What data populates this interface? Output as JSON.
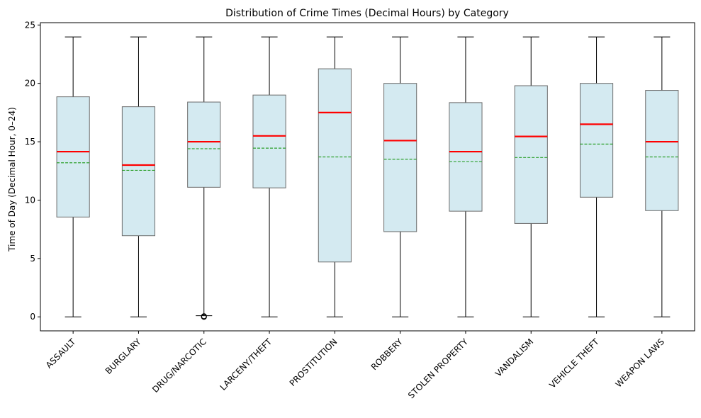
{
  "chart_data": {
    "type": "box",
    "title": "Distribution of Crime Times (Decimal Hours) by Category",
    "xlabel": "",
    "ylabel": "Time of Day (Decimal Hour, 0–24)",
    "ylim": [
      -1.2,
      25.2
    ],
    "yticks": [
      "0",
      "5",
      "10",
      "15",
      "20",
      "25"
    ],
    "grid": false,
    "categories": [
      "ASSAULT",
      "BURGLARY",
      "DRUG/NARCOTIC",
      "LARCENY/THEFT",
      "PROSTITUTION",
      "ROBBERY",
      "STOLEN PROPERTY",
      "VANDALISM",
      "VEHICLE THEFT",
      "WEAPON LAWS"
    ],
    "boxes": [
      {
        "whisker_low": 0,
        "q1": 8.55,
        "median": 14.15,
        "mean": 13.2,
        "q3": 18.85,
        "whisker_high": 23.98,
        "outliers": []
      },
      {
        "whisker_low": 0,
        "q1": 6.95,
        "median": 13.0,
        "mean": 12.55,
        "q3": 18.0,
        "whisker_high": 23.98,
        "outliers": []
      },
      {
        "whisker_low": 0.1,
        "q1": 11.1,
        "median": 15.0,
        "mean": 14.4,
        "q3": 18.4,
        "whisker_high": 23.98,
        "outliers": [
          0.0,
          0.05
        ]
      },
      {
        "whisker_low": 0,
        "q1": 11.05,
        "median": 15.5,
        "mean": 14.45,
        "q3": 19.0,
        "whisker_high": 23.98,
        "outliers": []
      },
      {
        "whisker_low": 0,
        "q1": 4.7,
        "median": 17.5,
        "mean": 13.7,
        "q3": 21.25,
        "whisker_high": 23.98,
        "outliers": []
      },
      {
        "whisker_low": 0,
        "q1": 7.3,
        "median": 15.1,
        "mean": 13.5,
        "q3": 20.0,
        "whisker_high": 23.98,
        "outliers": []
      },
      {
        "whisker_low": 0,
        "q1": 9.05,
        "median": 14.15,
        "mean": 13.3,
        "q3": 18.35,
        "whisker_high": 23.98,
        "outliers": []
      },
      {
        "whisker_low": 0,
        "q1": 8.0,
        "median": 15.45,
        "mean": 13.65,
        "q3": 19.8,
        "whisker_high": 23.98,
        "outliers": []
      },
      {
        "whisker_low": 0,
        "q1": 10.25,
        "median": 16.5,
        "mean": 14.8,
        "q3": 20.0,
        "whisker_high": 23.98,
        "outliers": []
      },
      {
        "whisker_low": 0,
        "q1": 9.1,
        "median": 15.0,
        "mean": 13.7,
        "q3": 19.4,
        "whisker_high": 23.98,
        "outliers": []
      }
    ],
    "colors": {
      "box_fill": "#d4eaf1",
      "box_edge": "#6b6b6b",
      "median": "#ff0000",
      "mean": "#2ca02c",
      "whisker": "#000000"
    }
  }
}
